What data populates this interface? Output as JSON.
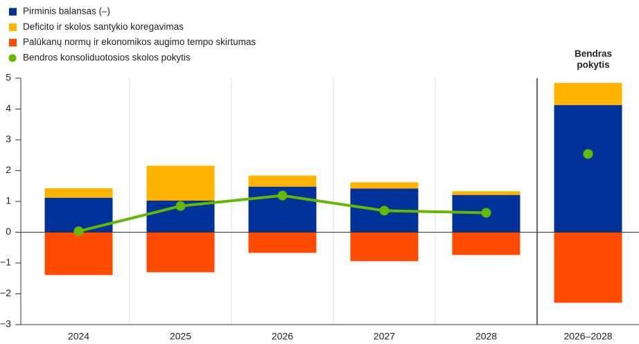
{
  "chart_data": {
    "type": "bar",
    "stacked": true,
    "annotation": "Bendras pokytis",
    "categories": [
      "2024",
      "2025",
      "2026",
      "2027",
      "2028",
      "2026–2028"
    ],
    "series": [
      {
        "name": "Pirminis balansas (–)",
        "color": "#003299",
        "values": [
          1.12,
          1.03,
          1.48,
          1.42,
          1.21,
          4.13
        ]
      },
      {
        "name": "Deficito ir skolos santykio koregavimas",
        "color": "#ffb400",
        "values": [
          0.31,
          1.13,
          0.36,
          0.2,
          0.12,
          0.72
        ]
      },
      {
        "name": "Palūkanų normų ir ekonomikos augimo tempo skirtumas",
        "color": "#ff4b00",
        "values": [
          -1.39,
          -1.3,
          -0.67,
          -0.94,
          -0.74,
          -2.29
        ]
      },
      {
        "name": "Bendros konsoliduotosios skolos pokytis",
        "color": "#65b800",
        "type": "line",
        "values": [
          0.03,
          0.85,
          1.19,
          0.7,
          0.63,
          2.54
        ]
      }
    ],
    "ylim": [
      -3,
      5
    ],
    "yticks": [
      {
        "value": -3,
        "label": "−3"
      },
      {
        "value": -2,
        "label": "−2"
      },
      {
        "value": -1,
        "label": "−1"
      },
      0,
      1,
      2,
      3,
      4,
      5
    ],
    "legend": "top-left"
  }
}
